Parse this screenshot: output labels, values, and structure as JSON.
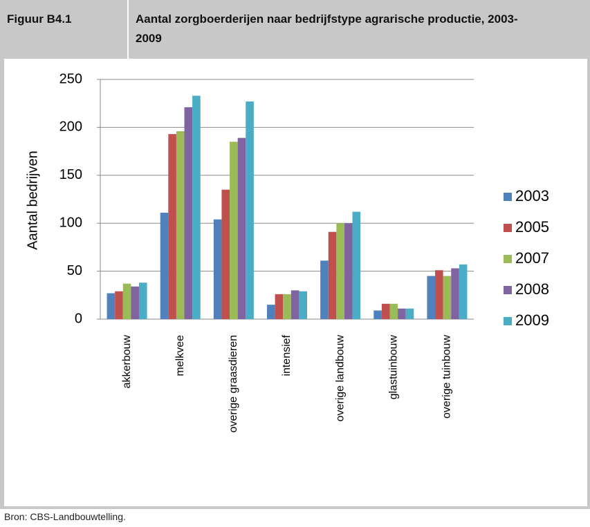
{
  "header": {
    "label": "Figuur B4.1",
    "title": "Aantal zorgboerderijen naar bedrijfstype agrarische productie, 2003-2009"
  },
  "chart_data": {
    "type": "bar",
    "y_label": "Aantal bedrijven",
    "categories": [
      "akkerbouw",
      "melkvee",
      "overige graasdieren",
      "intensief",
      "overige landbouw",
      "glastuinbouw",
      "overige tuinbouw"
    ],
    "series": [
      {
        "name": "2003",
        "color": "#4f81bd",
        "values": [
          27,
          111,
          104,
          15,
          61,
          9,
          45
        ]
      },
      {
        "name": "2005",
        "color": "#c0504d",
        "values": [
          29,
          193,
          135,
          26,
          91,
          16,
          51
        ]
      },
      {
        "name": "2007",
        "color": "#9bbb59",
        "values": [
          37,
          196,
          185,
          26,
          100,
          16,
          45
        ]
      },
      {
        "name": "2008",
        "color": "#8064a2",
        "values": [
          34,
          221,
          189,
          30,
          100,
          11,
          53
        ]
      },
      {
        "name": "2009",
        "color": "#4bacc6",
        "values": [
          38,
          233,
          227,
          29,
          112,
          11,
          57
        ]
      }
    ],
    "ylim": [
      0,
      250
    ],
    "yticks": [
      0,
      50,
      100,
      150,
      200,
      250
    ],
    "grid": true,
    "legend": "right"
  },
  "footer": {
    "source": "Bron: CBS-Landbouwtelling."
  }
}
